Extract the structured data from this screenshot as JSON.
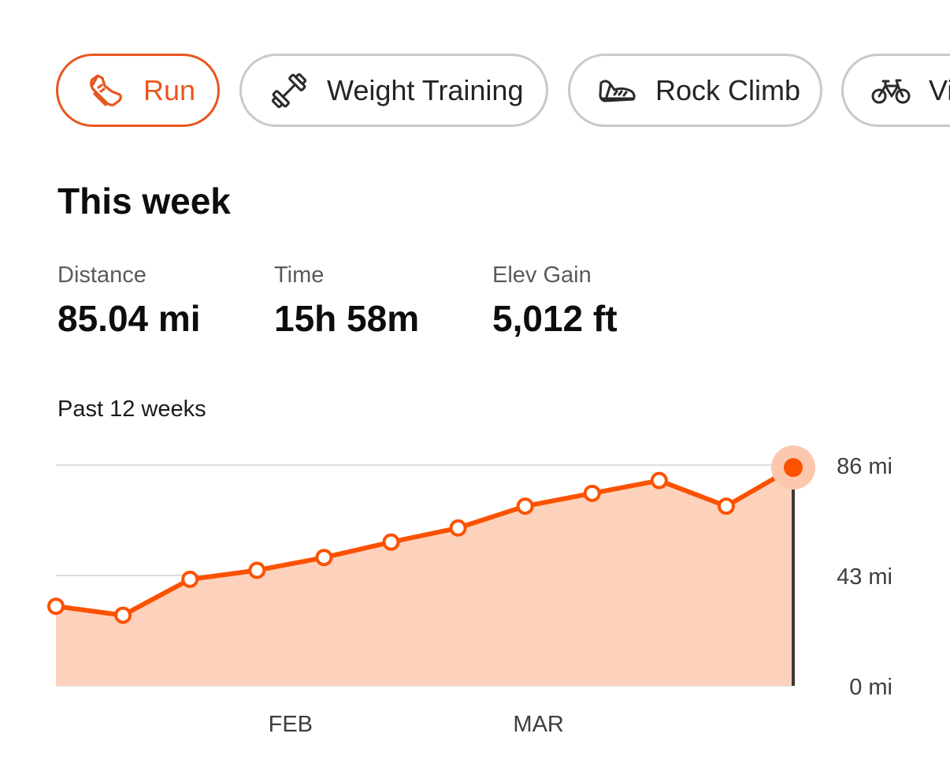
{
  "activity_tabs": [
    {
      "label": "Run",
      "icon": "run-shoe-icon",
      "active": true
    },
    {
      "label": "Weight Training",
      "icon": "dumbbell-icon",
      "active": false
    },
    {
      "label": "Rock Climb",
      "icon": "climbing-shoe-icon",
      "active": false
    },
    {
      "label": "Vi",
      "icon": "bike-icon",
      "active": false
    }
  ],
  "colors": {
    "accent": "#fc5200",
    "active_chip_border": "#e8561f",
    "area_fill": "#fcd2bd",
    "highlight_halo": "#fbc8ae",
    "marker_line": "#3a3a3a",
    "grid": "#dddddd",
    "inactive_border": "#c9c9c9"
  },
  "summary": {
    "title": "This week",
    "stats": [
      {
        "label": "Distance",
        "value": "85.04 mi"
      },
      {
        "label": "Time",
        "value": "15h 58m"
      },
      {
        "label": "Elev Gain",
        "value": "5,012 ft"
      }
    ]
  },
  "chart_heading": "Past 12 weeks",
  "chart_data": {
    "type": "area",
    "title": "Past 12 weeks",
    "x": [
      1,
      2,
      3,
      4,
      5,
      6,
      7,
      8,
      9,
      10,
      11,
      12
    ],
    "values": [
      31,
      27.5,
      41.5,
      45,
      50,
      56,
      61.5,
      70,
      75,
      80,
      70,
      85.04
    ],
    "unit": "mi",
    "ylim": [
      0,
      86
    ],
    "y_ticks": [
      {
        "value": 0,
        "label": "0 mi"
      },
      {
        "value": 43,
        "label": "43 mi"
      },
      {
        "value": 86,
        "label": "86 mi"
      }
    ],
    "x_ticks": [
      {
        "x": 4.5,
        "label": "FEB"
      },
      {
        "x": 8.2,
        "label": "MAR"
      }
    ],
    "highlight_index": 11,
    "grid": true,
    "legend": "none"
  }
}
